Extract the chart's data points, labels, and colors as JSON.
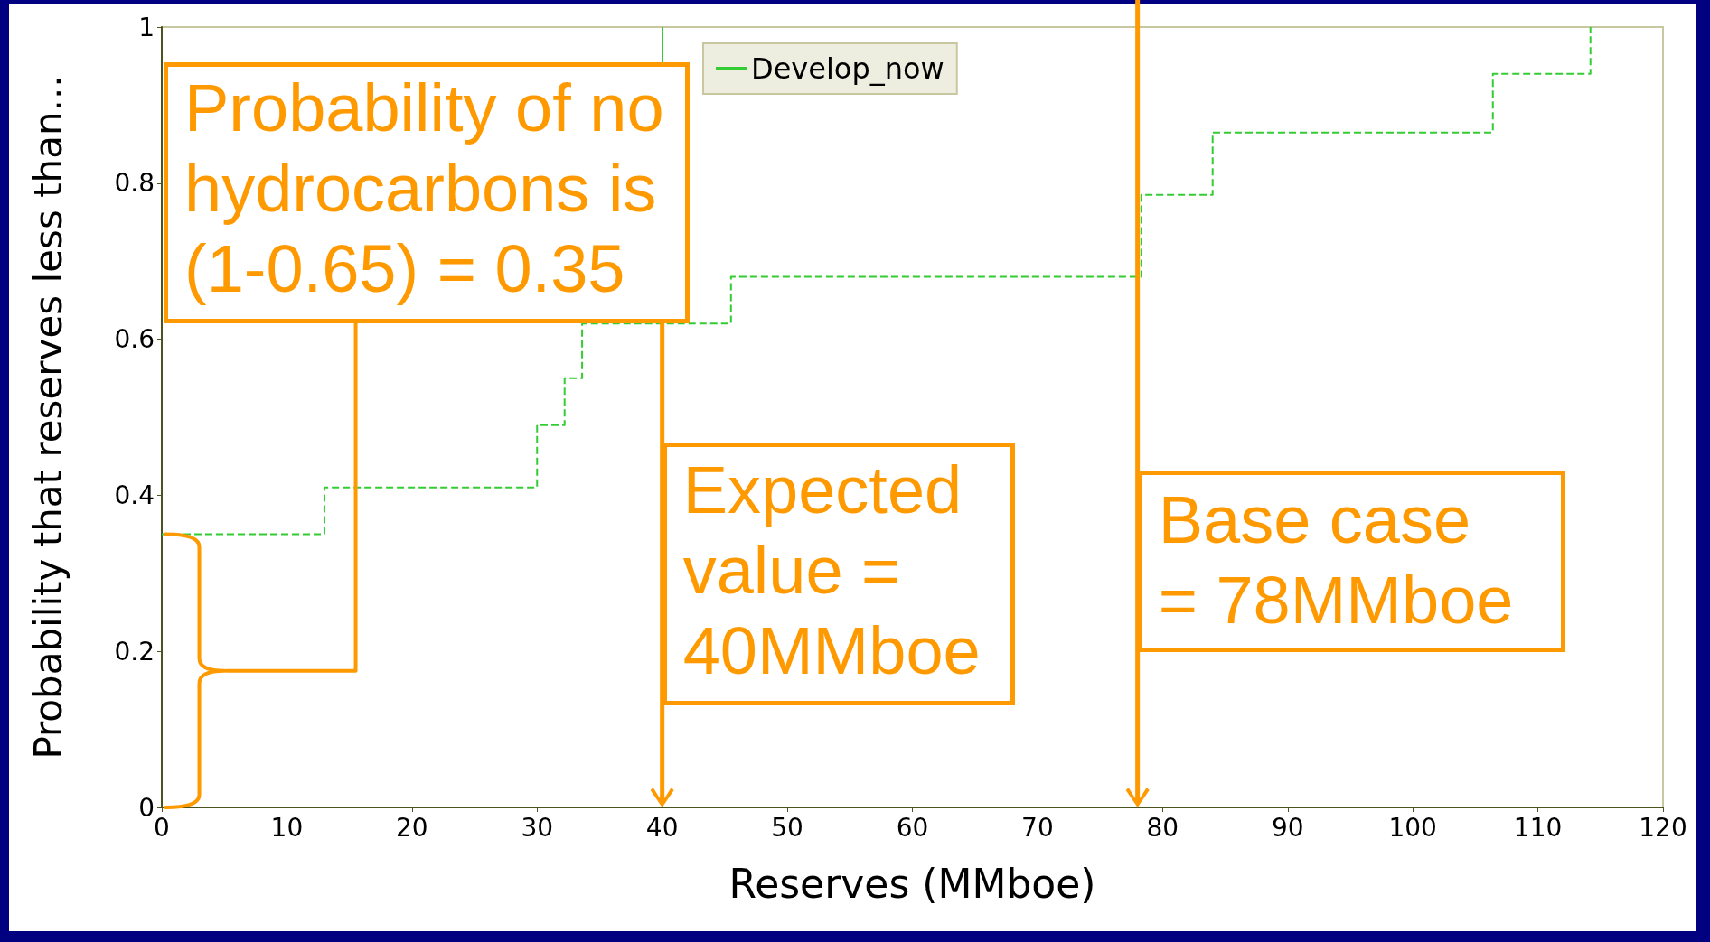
{
  "chart_data": {
    "type": "step",
    "xlabel": "Reserves (MMboe)",
    "ylabel": "Probability that reserves less than...",
    "x": [
      0,
      13,
      30,
      32.2,
      33.6,
      45.5,
      78.3,
      84,
      106.4,
      114.2
    ],
    "series": [
      {
        "name": "Develop_now",
        "color": "#33cc33",
        "values": [
          0.35,
          0.41,
          0.49,
          0.55,
          0.62,
          0.68,
          0.785,
          0.865,
          0.94,
          1.0
        ]
      }
    ],
    "xlim": [
      0,
      120
    ],
    "xticks": [
      0,
      10,
      20,
      30,
      40,
      50,
      60,
      70,
      80,
      90,
      100,
      110,
      120
    ],
    "ylim": [
      0,
      1
    ],
    "yticks": [
      0,
      0.2,
      0.4,
      0.6,
      0.8,
      1
    ],
    "line_style": "dashed",
    "marker": "none",
    "grid": false,
    "legend": "top",
    "ref_lines": [
      {
        "axis": "x",
        "value": 40,
        "color": "#33cc33",
        "line_style": "solid"
      }
    ],
    "annotations": [
      "Probability of no hydrocarbons is (1-0.65) = 0.35",
      "Expected value = 40MMboe",
      "Base case = 78MMboe"
    ]
  }
}
